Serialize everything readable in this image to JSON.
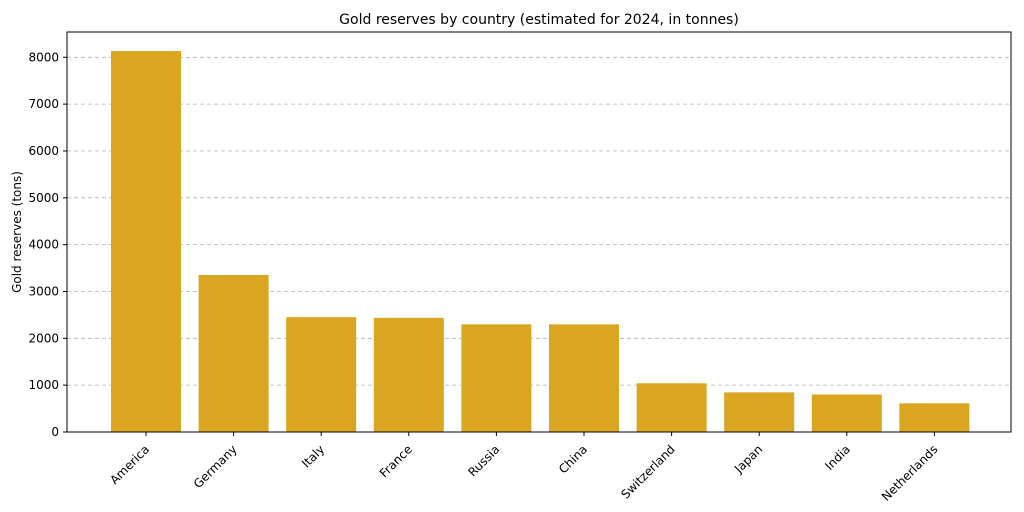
{
  "chart_data": {
    "type": "bar",
    "title": "Gold reserves by country (estimated for 2024, in tonnes)",
    "xlabel": "",
    "ylabel": "Gold reserves (tons)",
    "categories": [
      "America",
      "Germany",
      "Italy",
      "France",
      "Russia",
      "China",
      "Switzerland",
      "Japan",
      "India",
      "Netherlands"
    ],
    "values": [
      8133,
      3352,
      2452,
      2437,
      2299,
      2298,
      1040,
      846,
      801,
      612
    ],
    "ylim": [
      0,
      8540
    ],
    "yticks": [
      0,
      1000,
      2000,
      3000,
      4000,
      5000,
      6000,
      7000,
      8000
    ],
    "grid": "y-dashed",
    "bar_color": "#DAA520"
  }
}
